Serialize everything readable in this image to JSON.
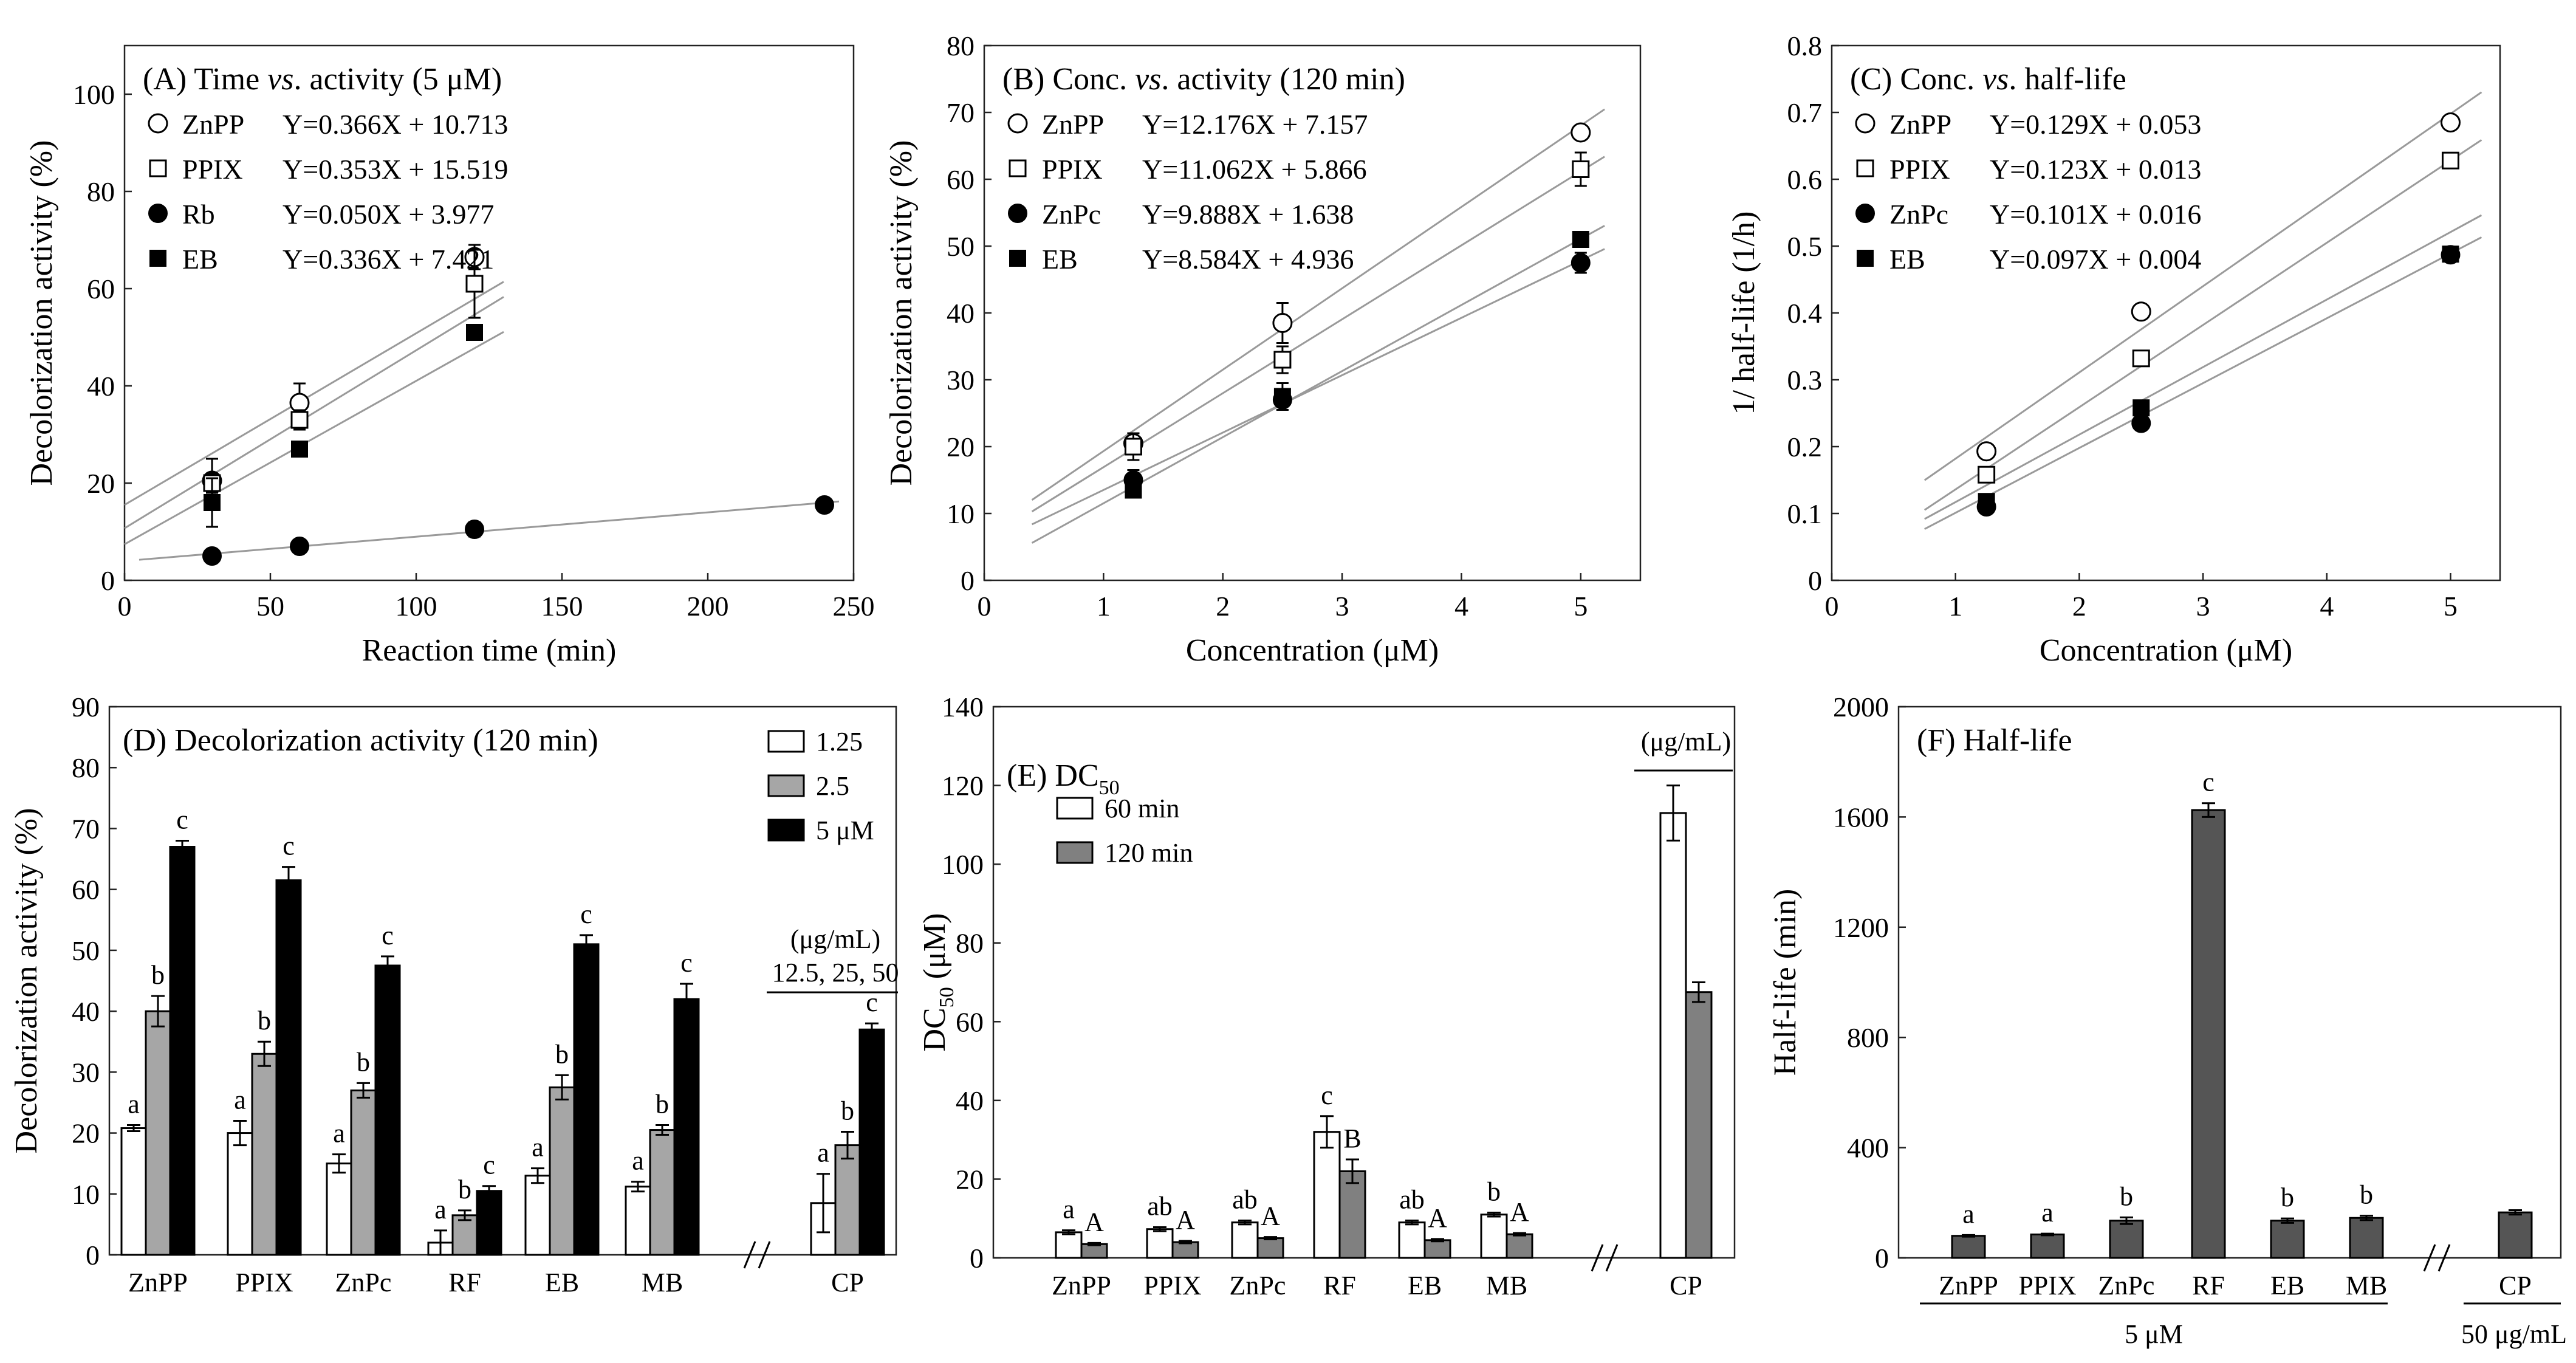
{
  "chart_data": [
    {
      "id": "A",
      "type": "scatter",
      "title": "(A) Time vs. activity (5 μM)",
      "title_parts": [
        "(A) Time ",
        "vs",
        ". activity (5 μM)"
      ],
      "xlabel": "Reaction time (min)",
      "ylabel": "Decolorization activity (%)",
      "xlim": [
        0,
        250
      ],
      "ylim": [
        0,
        110
      ],
      "xticks": [
        0,
        50,
        100,
        150,
        200,
        250
      ],
      "yticks": [
        0,
        20,
        40,
        60,
        80,
        100
      ],
      "series": [
        {
          "name": "ZnPP",
          "marker": "open-circle",
          "equation": "Y=0.366X + 10.713",
          "x": [
            30,
            60,
            120
          ],
          "y": [
            20.5,
            36.5,
            66.5
          ],
          "err": [
            4.5,
            4,
            2.5
          ],
          "fit": [
            0.366,
            10.713
          ],
          "fit_range": [
            0,
            130
          ]
        },
        {
          "name": "PPIX",
          "marker": "open-square",
          "equation": "Y=0.353X + 15.519",
          "x": [
            30,
            60,
            120
          ],
          "y": [
            20,
            33,
            61
          ],
          "err": [
            2,
            2,
            7
          ],
          "fit": [
            0.353,
            15.519
          ],
          "fit_range": [
            0,
            130
          ]
        },
        {
          "name": "Rb",
          "marker": "filled-circle",
          "equation": "Y=0.050X + 3.977",
          "x": [
            30,
            60,
            120,
            240
          ],
          "y": [
            5,
            7,
            10.5,
            15.5
          ],
          "err": [
            1,
            0.5,
            1.5,
            0.5
          ],
          "fit": [
            0.05,
            3.977
          ],
          "fit_range": [
            5,
            245
          ]
        },
        {
          "name": "EB",
          "marker": "filled-square",
          "equation": "Y=0.336X + 7.421",
          "x": [
            30,
            60,
            120
          ],
          "y": [
            16,
            27,
            51
          ],
          "err": [
            5,
            1.5,
            1
          ],
          "fit": [
            0.336,
            7.421
          ],
          "fit_range": [
            0,
            130
          ]
        }
      ]
    },
    {
      "id": "B",
      "type": "scatter",
      "title": "(B) Conc. vs. activity (120 min)",
      "title_parts": [
        "(B) Conc. ",
        "vs",
        ". activity (120 min)"
      ],
      "xlabel": "Concentration (μM)",
      "ylabel": "Decolorization activity (%)",
      "xlim": [
        0,
        5.5
      ],
      "ylim": [
        0,
        80
      ],
      "xticks": [
        0,
        1,
        2,
        3,
        4,
        5
      ],
      "yticks": [
        0,
        10,
        20,
        30,
        40,
        50,
        60,
        70,
        80
      ],
      "series": [
        {
          "name": "ZnPP",
          "marker": "open-circle",
          "equation": "Y=12.176X + 7.157",
          "x": [
            1.25,
            2.5,
            5
          ],
          "y": [
            20.5,
            38.5,
            67
          ],
          "err": [
            1.5,
            3,
            0.8
          ],
          "fit": [
            12.176,
            7.157
          ],
          "fit_range": [
            0.4,
            5.2
          ]
        },
        {
          "name": "PPIX",
          "marker": "open-square",
          "equation": "Y=11.062X + 5.866",
          "x": [
            1.25,
            2.5,
            5
          ],
          "y": [
            20,
            33,
            61.5
          ],
          "err": [
            2,
            2,
            2.5
          ],
          "fit": [
            11.062,
            5.866
          ],
          "fit_range": [
            0.4,
            5.2
          ]
        },
        {
          "name": "ZnPc",
          "marker": "filled-circle",
          "equation": "Y=9.888X + 1.638",
          "x": [
            1.25,
            2.5,
            5
          ],
          "y": [
            15,
            27,
            47.5
          ],
          "err": [
            1.5,
            1.5,
            1.5
          ],
          "fit": [
            9.888,
            1.638
          ],
          "fit_range": [
            0.4,
            5.2
          ]
        },
        {
          "name": "EB",
          "marker": "filled-square",
          "equation": "Y=8.584X + 4.936",
          "x": [
            1.25,
            2.5,
            5
          ],
          "y": [
            13.5,
            27.5,
            51
          ],
          "err": [
            1,
            2,
            1
          ],
          "fit": [
            8.584,
            4.936
          ],
          "fit_range": [
            0.4,
            5.2
          ]
        }
      ]
    },
    {
      "id": "C",
      "type": "scatter",
      "title": "(C) Conc. vs. half-life",
      "title_parts": [
        "(C) Conc. ",
        "vs",
        ". half-life"
      ],
      "xlabel": "Concentration (μM)",
      "ylabel": "1/ half-life (1/h)",
      "xlim": [
        0,
        5.4
      ],
      "ylim": [
        0,
        0.8
      ],
      "xticks": [
        0,
        1,
        2,
        3,
        4,
        5
      ],
      "yticks": [
        0,
        0.1,
        0.2,
        0.3,
        0.4,
        0.5,
        0.6,
        0.7,
        0.8
      ],
      "series": [
        {
          "name": "ZnPP",
          "marker": "open-circle",
          "equation": "Y=0.129X + 0.053",
          "x": [
            1.25,
            2.5,
            5
          ],
          "y": [
            0.193,
            0.402,
            0.685
          ],
          "err": [
            0,
            0,
            0
          ],
          "fit": [
            0.129,
            0.053
          ],
          "fit_range": [
            0.75,
            5.25
          ]
        },
        {
          "name": "PPIX",
          "marker": "open-square",
          "equation": "Y=0.123X + 0.013",
          "x": [
            1.25,
            2.5,
            5
          ],
          "y": [
            0.158,
            0.332,
            0.628
          ],
          "err": [
            0,
            0,
            0
          ],
          "fit": [
            0.123,
            0.013
          ],
          "fit_range": [
            0.75,
            5.25
          ]
        },
        {
          "name": "ZnPc",
          "marker": "filled-circle",
          "equation": "Y=0.101X + 0.016",
          "x": [
            1.25,
            2.5,
            5
          ],
          "y": [
            0.11,
            0.235,
            0.487
          ],
          "err": [
            0,
            0,
            0
          ],
          "fit": [
            0.101,
            0.016
          ],
          "fit_range": [
            0.75,
            5.25
          ]
        },
        {
          "name": "EB",
          "marker": "filled-square",
          "equation": "Y=0.097X + 0.004",
          "x": [
            1.25,
            2.5,
            5
          ],
          "y": [
            0.118,
            0.258,
            0.488
          ],
          "err": [
            0,
            0,
            0
          ],
          "fit": [
            0.097,
            0.004
          ],
          "fit_range": [
            0.75,
            5.25
          ]
        }
      ]
    },
    {
      "id": "D",
      "type": "bar",
      "title": "(D) Decolorization activity (120 min)",
      "ylabel": "Decolorization activity (%)",
      "ylim": [
        0,
        90
      ],
      "yticks": [
        0,
        10,
        20,
        30,
        40,
        50,
        60,
        70,
        80,
        90
      ],
      "categories": [
        "ZnPP",
        "PPIX",
        "ZnPc",
        "RF",
        "EB",
        "MB",
        "CP"
      ],
      "break_before": 6,
      "series": [
        {
          "name": "1.25",
          "color": "#ffffff",
          "values": [
            20.8,
            20,
            15,
            2,
            13,
            11.2,
            8.5
          ],
          "err": [
            0.5,
            2,
            1.5,
            2,
            1.2,
            0.8,
            4.8
          ]
        },
        {
          "name": "2.5",
          "color": "#a6a6a6",
          "values": [
            40,
            33,
            27,
            6.5,
            27.5,
            20.5,
            18
          ],
          "err": [
            2.5,
            2,
            1.2,
            0.8,
            2,
            0.8,
            2.2
          ]
        },
        {
          "name": "5 μM",
          "color": "#000000",
          "values": [
            67,
            61.5,
            47.5,
            10.5,
            51,
            42,
            37
          ],
          "err": [
            1,
            2.2,
            1.5,
            0.8,
            1.5,
            2.5,
            1
          ]
        }
      ],
      "letters": [
        [
          "a",
          "b",
          "c"
        ],
        [
          "a",
          "b",
          "c"
        ],
        [
          "a",
          "b",
          "c"
        ],
        [
          "a",
          "b",
          "c"
        ],
        [
          "a",
          "b",
          "c"
        ],
        [
          "a",
          "b",
          "c"
        ],
        [
          "a",
          "b",
          "c"
        ]
      ],
      "group_note_line1": "(μg/mL)",
      "group_note_line2": "12.5, 25, 50"
    },
    {
      "id": "E",
      "type": "bar",
      "title_main": "(E) DC",
      "title_sub": "50",
      "ylabel_main": "DC",
      "ylabel_sub": "50",
      "ylabel_unit": " (μM)",
      "ylim": [
        0,
        140
      ],
      "yticks": [
        0,
        20,
        40,
        60,
        80,
        100,
        120,
        140
      ],
      "categories": [
        "ZnPP",
        "PPIX",
        "ZnPc",
        "RF",
        "EB",
        "MB",
        "CP"
      ],
      "break_before": 6,
      "series": [
        {
          "name": "60 min",
          "color": "#ffffff",
          "values": [
            6.5,
            7.3,
            9,
            32,
            9,
            11,
            113
          ],
          "err": [
            0.5,
            0.5,
            0.5,
            4,
            0.5,
            0.5,
            7
          ]
        },
        {
          "name": "120 min",
          "color": "#808080",
          "values": [
            3.5,
            4,
            5,
            22,
            4.5,
            6,
            67.5
          ],
          "err": [
            0.3,
            0.3,
            0.3,
            3,
            0.3,
            0.3,
            2.5
          ]
        }
      ],
      "letters": [
        [
          "a",
          "A"
        ],
        [
          "ab",
          "A"
        ],
        [
          "ab",
          "A"
        ],
        [
          "c",
          "B"
        ],
        [
          "ab",
          "A"
        ],
        [
          "b",
          "A"
        ],
        [
          "",
          ""
        ]
      ],
      "group_note_line1": "(μg/mL)"
    },
    {
      "id": "F",
      "type": "bar",
      "title": "(F) Half-life",
      "ylabel": "Half-life (min)",
      "ylim": [
        0,
        2000
      ],
      "yticks": [
        0,
        400,
        800,
        1200,
        1600,
        2000
      ],
      "categories": [
        "ZnPP",
        "PPIX",
        "ZnPc",
        "RF",
        "EB",
        "MB",
        "CP"
      ],
      "break_before": 6,
      "series": [
        {
          "name": "Half-life",
          "color": "#555555",
          "values": [
            80,
            85,
            135,
            1625,
            135,
            145,
            165
          ],
          "err": [
            3,
            3,
            12,
            25,
            8,
            8,
            8
          ]
        }
      ],
      "letters": [
        [
          "a"
        ],
        [
          "a"
        ],
        [
          "b"
        ],
        [
          "c"
        ],
        [
          "b"
        ],
        [
          "b"
        ],
        [
          ""
        ]
      ],
      "group_label_main": "5 μM",
      "group_label_cp": "50 μg/mL"
    }
  ]
}
